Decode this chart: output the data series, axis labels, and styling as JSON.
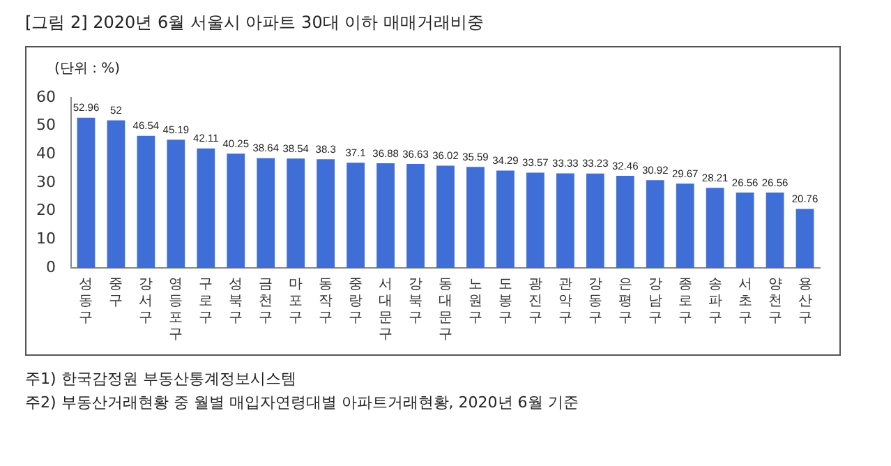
{
  "chart_data": {
    "type": "bar",
    "title": "[그림 2] 2020년 6월 서울시 아파트 30대 이하 매매거래비중",
    "ylabel": "(단위 : %)",
    "categories": [
      "성동구",
      "중구",
      "강서구",
      "영등포구",
      "구로구",
      "성북구",
      "금천구",
      "마포구",
      "동작구",
      "중랑구",
      "서대문구",
      "강북구",
      "동대문구",
      "노원구",
      "도봉구",
      "광진구",
      "관악구",
      "강동구",
      "은평구",
      "강남구",
      "종로구",
      "송파구",
      "서초구",
      "양천구",
      "용산구"
    ],
    "values": [
      52.96,
      52,
      46.54,
      45.19,
      42.11,
      40.25,
      38.64,
      38.54,
      38.3,
      37.1,
      36.88,
      36.63,
      36.02,
      35.59,
      34.29,
      33.57,
      33.33,
      33.23,
      32.46,
      30.92,
      29.67,
      28.21,
      26.56,
      26.56,
      20.76
    ],
    "color": "#3f6fd6",
    "ylim": [
      0,
      60
    ],
    "yticks": [
      0,
      10,
      20,
      30,
      40,
      50,
      60
    ],
    "grid": false,
    "legend": false,
    "data_labels": true,
    "annotations": [
      "주1) 한국감정원 부동산통계정보시스템",
      "주2) 부동산거래현황 중 월별 매입자연령대별 아파트거래현황, 2020년 6월 기준"
    ]
  }
}
